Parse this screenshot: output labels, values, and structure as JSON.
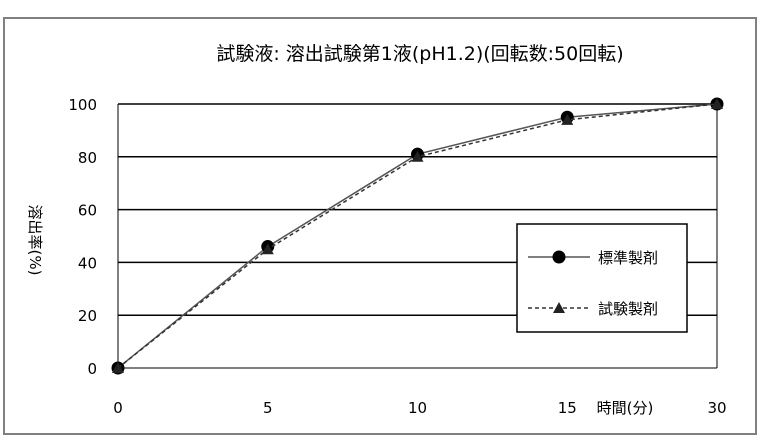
{
  "chart_data": {
    "type": "line",
    "title": "試験液: 溶出試験第1液(pH1.2)(回転数:50回転)",
    "xlabel": "時間(分)",
    "ylabel": "溶出率(%)",
    "categories": [
      "0",
      "5",
      "10",
      "15",
      "30"
    ],
    "ylim": [
      0,
      100
    ],
    "yticks": [
      "0",
      "20",
      "40",
      "60",
      "80",
      "100"
    ],
    "grid": true,
    "legend_position": "right",
    "series": [
      {
        "name": "標準製剤",
        "values": [
          0,
          46,
          81,
          95,
          100
        ],
        "marker": "circle",
        "line": "solid",
        "color": "#555555"
      },
      {
        "name": "試験製剤",
        "values": [
          0,
          45,
          80,
          94,
          100
        ],
        "marker": "triangle",
        "line": "dashed",
        "color": "#333333"
      }
    ]
  }
}
